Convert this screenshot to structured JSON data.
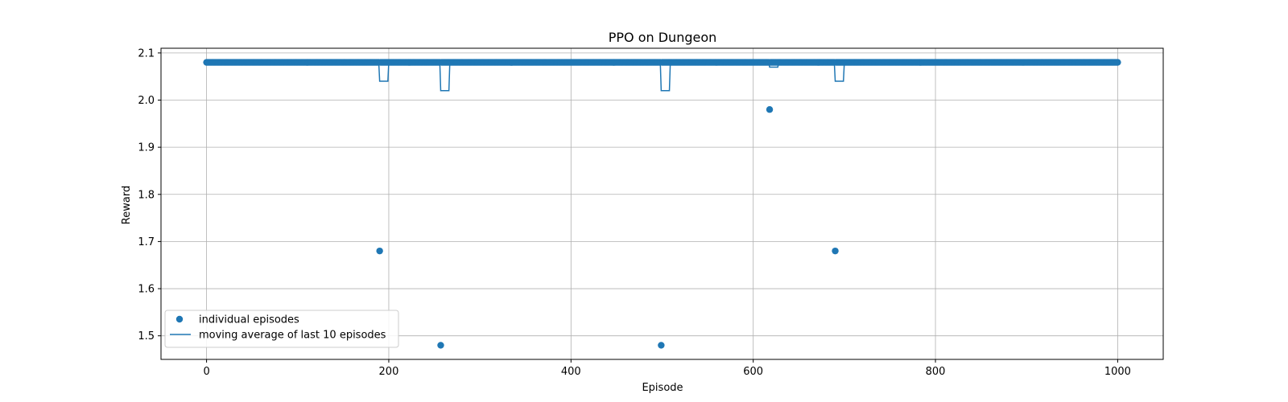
{
  "chart_data": {
    "type": "scatter",
    "title": "PPO on Dungeon",
    "xlabel": "Episode",
    "ylabel": "Reward",
    "xlim": [
      -50,
      1050
    ],
    "ylim": [
      1.45,
      2.11
    ],
    "xticks": [
      0,
      200,
      400,
      600,
      800,
      1000
    ],
    "yticks": [
      1.5,
      1.6,
      1.7,
      1.8,
      1.9,
      2.0,
      2.1
    ],
    "grid": true,
    "legend_position": "lower-left",
    "color": "#1f77b4",
    "series": [
      {
        "name": "individual episodes",
        "kind": "scatter",
        "baseline": 2.08,
        "x_start": 0,
        "x_end": 1000,
        "outliers": [
          {
            "x": 190,
            "y": 1.68
          },
          {
            "x": 257,
            "y": 1.48
          },
          {
            "x": 499,
            "y": 1.48
          },
          {
            "x": 618,
            "y": 1.98
          },
          {
            "x": 690,
            "y": 1.68
          }
        ]
      },
      {
        "name": "moving average of last 10 episodes",
        "kind": "line",
        "window": 10
      }
    ]
  }
}
